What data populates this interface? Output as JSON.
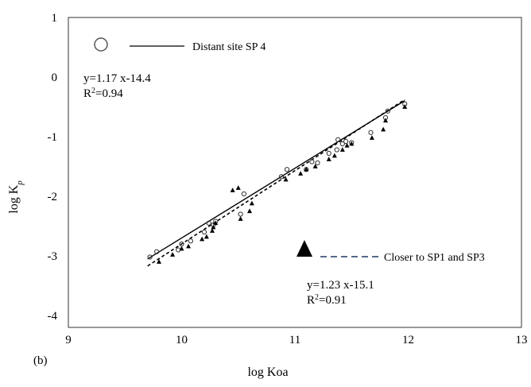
{
  "chart_data": {
    "type": "scatter",
    "panel_label": "(b)",
    "xlabel": "log Koa",
    "ylabel_main": "log K",
    "ylabel_sub": "p",
    "xlim": [
      9,
      13
    ],
    "ylim": [
      -4.2,
      1
    ],
    "xticks": [
      "9",
      "10",
      "11",
      "12",
      "13"
    ],
    "yticks": [
      "1",
      "0",
      "-1",
      "-2",
      "-3",
      "-4"
    ],
    "grid": false,
    "series": [
      {
        "name": "Distant site SP 4",
        "marker": "open-circle",
        "line": "solid",
        "color": "#000000",
        "fit": {
          "slope": 1.17,
          "intercept": -14.4,
          "x_range": [
            9.7,
            11.97
          ]
        },
        "equation": "y=1.17 x-14.4",
        "r2_prefix": "R",
        "r2_sup": "2",
        "r2_value": "=0.94",
        "points": [
          [
            9.72,
            -3.02
          ],
          [
            9.78,
            -2.93
          ],
          [
            9.97,
            -2.9
          ],
          [
            10.0,
            -2.8
          ],
          [
            10.08,
            -2.75
          ],
          [
            10.2,
            -2.6
          ],
          [
            10.24,
            -2.45
          ],
          [
            10.28,
            -2.48
          ],
          [
            10.3,
            -2.42
          ],
          [
            10.52,
            -2.3
          ],
          [
            10.55,
            -1.96
          ],
          [
            10.88,
            -1.67
          ],
          [
            10.93,
            -1.55
          ],
          [
            11.1,
            -1.55
          ],
          [
            11.15,
            -1.42
          ],
          [
            11.2,
            -1.44
          ],
          [
            11.3,
            -1.28
          ],
          [
            11.37,
            -1.22
          ],
          [
            11.38,
            -1.05
          ],
          [
            11.42,
            -1.12
          ],
          [
            11.45,
            -1.08
          ],
          [
            11.5,
            -1.1
          ],
          [
            11.67,
            -0.93
          ],
          [
            11.8,
            -0.68
          ],
          [
            11.82,
            -0.57
          ],
          [
            11.97,
            -0.45
          ]
        ]
      },
      {
        "name": "Closer to SP1 and SP3",
        "marker": "filled-triangle",
        "line": "dashed",
        "color": "#000000",
        "fit": {
          "slope": 1.23,
          "intercept": -15.1,
          "x_range": [
            9.7,
            11.97
          ]
        },
        "equation": "y=1.23 x-15.1",
        "r2_prefix": "R",
        "r2_sup": "2",
        "r2_value": "=0.91",
        "points": [
          [
            9.8,
            -3.1
          ],
          [
            9.92,
            -2.98
          ],
          [
            10.0,
            -2.88
          ],
          [
            10.06,
            -2.84
          ],
          [
            10.18,
            -2.72
          ],
          [
            10.22,
            -2.68
          ],
          [
            10.27,
            -2.58
          ],
          [
            10.28,
            -2.52
          ],
          [
            10.3,
            -2.45
          ],
          [
            10.45,
            -1.9
          ],
          [
            10.5,
            -1.86
          ],
          [
            10.52,
            -2.38
          ],
          [
            10.6,
            -2.25
          ],
          [
            10.62,
            -2.12
          ],
          [
            10.92,
            -1.72
          ],
          [
            11.05,
            -1.62
          ],
          [
            11.1,
            -1.55
          ],
          [
            11.18,
            -1.5
          ],
          [
            11.3,
            -1.38
          ],
          [
            11.35,
            -1.32
          ],
          [
            11.42,
            -1.22
          ],
          [
            11.46,
            -1.15
          ],
          [
            11.5,
            -1.12
          ],
          [
            11.68,
            -1.02
          ],
          [
            11.78,
            -0.88
          ],
          [
            11.8,
            -0.73
          ],
          [
            11.97,
            -0.5
          ]
        ]
      }
    ]
  }
}
